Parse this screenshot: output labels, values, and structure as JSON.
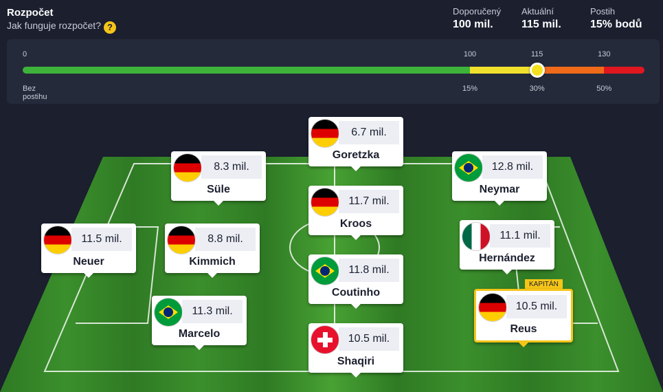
{
  "header": {
    "title": "Rozpočet",
    "help_link": "Jak funguje rozpočet?",
    "stats": [
      {
        "label": "Doporučený",
        "value": "100 mil."
      },
      {
        "label": "Aktuální",
        "value": "115 mil."
      },
      {
        "label": "Postih",
        "value": "15% bodů"
      }
    ]
  },
  "budget": {
    "ticks": [
      0,
      100,
      115,
      130
    ],
    "penalties": [
      "Bez postihu",
      "15%",
      "30%",
      "50%"
    ]
  },
  "captain_label": "KAPITÁN",
  "players": [
    {
      "name": "Neuer",
      "price": "11.5 mil."
    },
    {
      "name": "Kimmich",
      "price": "8.8 mil."
    },
    {
      "name": "Süle",
      "price": "8.3 mil."
    },
    {
      "name": "Marcelo",
      "price": "11.3 mil."
    },
    {
      "name": "Goretzka",
      "price": "6.7 mil."
    },
    {
      "name": "Kroos",
      "price": "11.7 mil."
    },
    {
      "name": "Coutinho",
      "price": "11.8 mil."
    },
    {
      "name": "Shaqiri",
      "price": "10.5 mil."
    },
    {
      "name": "Neymar",
      "price": "12.8 mil."
    },
    {
      "name": "Hernández",
      "price": "11.1 mil."
    },
    {
      "name": "Reus",
      "price": "10.5 mil."
    }
  ]
}
